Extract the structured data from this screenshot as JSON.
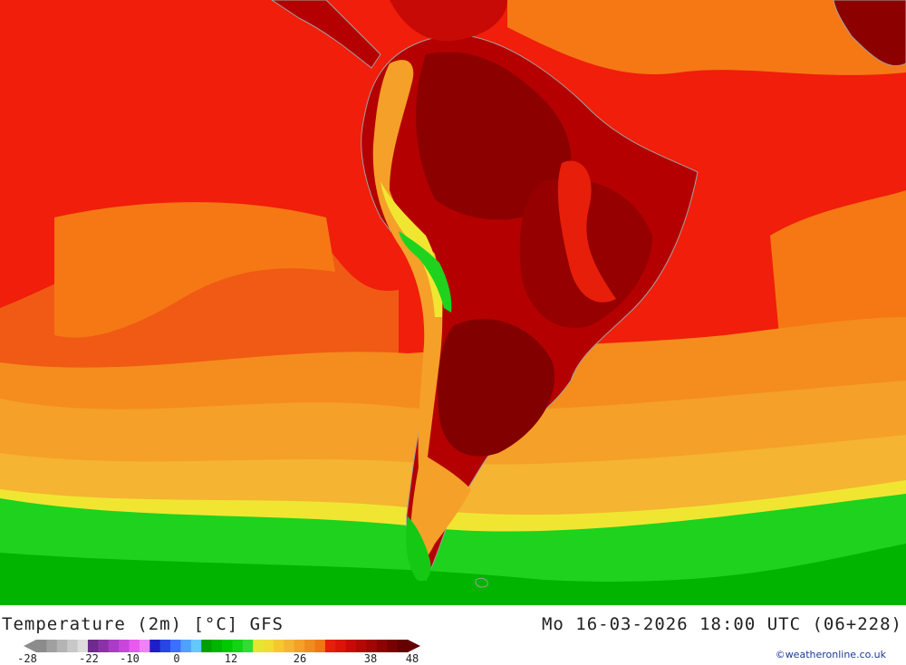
{
  "title": "Temperature (2m) [°C] GFS",
  "datetime": "Mo 16-03-2026 18:00 UTC (06+228)",
  "copyright": "©weatheronline.co.uk",
  "legend": {
    "ticks": [
      "-28",
      "-22",
      "-10",
      "0",
      "12",
      "26",
      "38",
      "48"
    ],
    "colors": [
      "#8c8c8c",
      "#a0a0a0",
      "#b4b4b4",
      "#c8c8c8",
      "#dcdcdc",
      "#6e2a8c",
      "#8c32a8",
      "#aa3cc8",
      "#c846dc",
      "#e65af0",
      "#f082f5",
      "#1e1ec8",
      "#2846e6",
      "#3c6eff",
      "#50a0ff",
      "#64c8ff",
      "#00a000",
      "#00b400",
      "#00c800",
      "#14d214",
      "#32dc32",
      "#e6e632",
      "#f0dc32",
      "#f5c832",
      "#f5b432",
      "#f5a028",
      "#f08c1e",
      "#f07814",
      "#e61e0a",
      "#dc1408",
      "#c80a06",
      "#b40804",
      "#a00604",
      "#8c0402",
      "#780202",
      "#640101"
    ]
  },
  "colors": {
    "deep_red": "#8c0000",
    "dark_red": "#b40000",
    "red": "#e61e0a",
    "bright_red": "#f01e0a",
    "orange_red": "#f05014",
    "orange": "#f57814",
    "light_orange": "#f5a028",
    "amber": "#f5b432",
    "yellow": "#f0e632",
    "green": "#1ed21e",
    "dark_green": "#00a000",
    "coast": "#a0a0a0"
  }
}
